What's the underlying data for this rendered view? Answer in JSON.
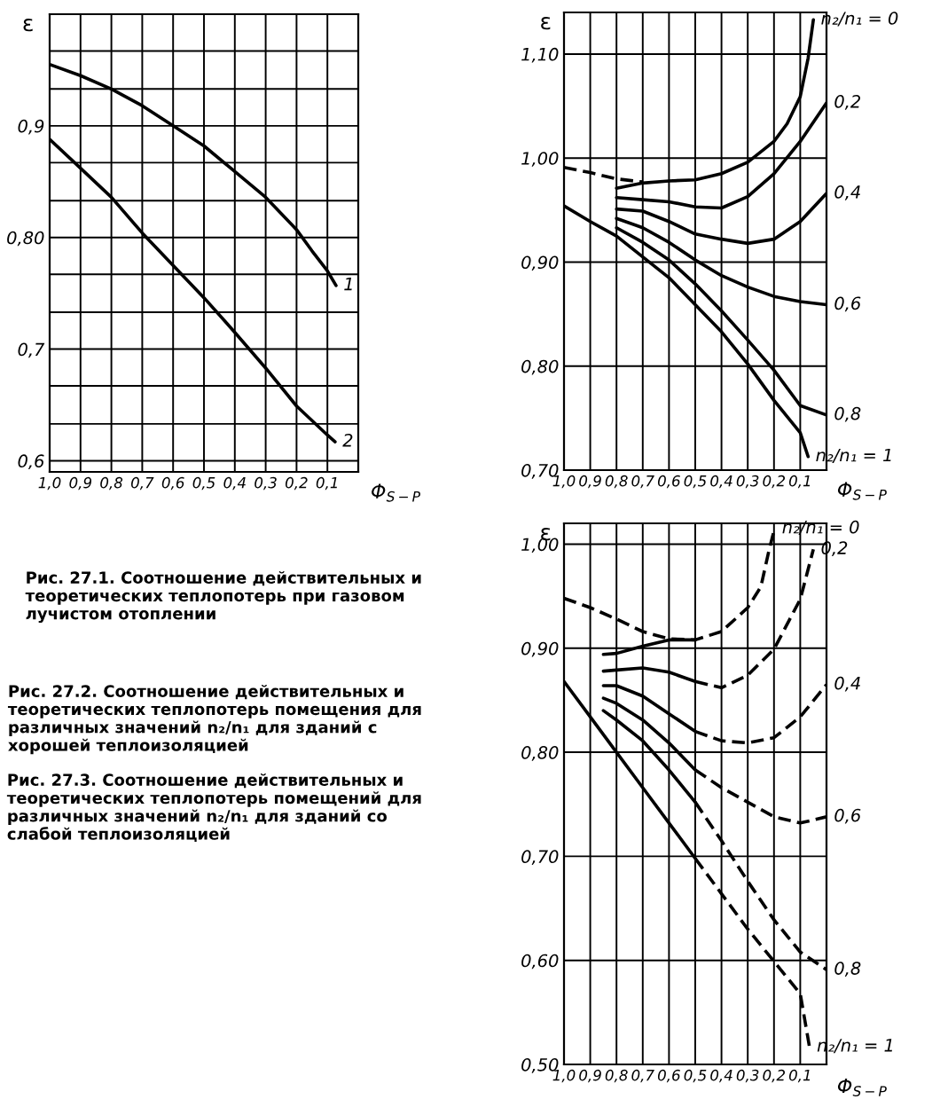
{
  "chart_data": [
    {
      "type": "line",
      "xlabel": "Φ$_{S−P}$",
      "ylabel": "ε",
      "xlim": [
        1.0,
        0.0
      ],
      "ylim": [
        0.59,
        1.0
      ],
      "xticks": [
        {
          "value": 1.0,
          "label": "1,0"
        },
        {
          "value": 0.9,
          "label": "0,9"
        },
        {
          "value": 0.8,
          "label": "0,8"
        },
        {
          "value": 0.7,
          "label": "0,7"
        },
        {
          "value": 0.6,
          "label": "0,6"
        },
        {
          "value": 0.5,
          "label": "0,5"
        },
        {
          "value": 0.4,
          "label": "0,4"
        },
        {
          "value": 0.3,
          "label": "0,3"
        },
        {
          "value": 0.2,
          "label": "0,2"
        },
        {
          "value": 0.1,
          "label": "0,1"
        }
      ],
      "yticks": [
        {
          "value": 0.6,
          "label": "0,6"
        },
        {
          "value": 0.633,
          "label": null
        },
        {
          "value": 0.667,
          "label": null
        },
        {
          "value": 0.7,
          "label": "0,7"
        },
        {
          "value": 0.733,
          "label": null
        },
        {
          "value": 0.767,
          "label": null
        },
        {
          "value": 0.8,
          "label": "0,80"
        },
        {
          "value": 0.833,
          "label": null
        },
        {
          "value": 0.867,
          "label": null
        },
        {
          "value": 0.9,
          "label": "0,9"
        },
        {
          "value": 0.933,
          "label": null
        },
        {
          "value": 0.967,
          "label": null
        }
      ],
      "grid": true,
      "series": [
        {
          "name": "1",
          "color": "#000000",
          "line_style": "solid",
          "x": [
            1.0,
            0.9,
            0.8,
            0.7,
            0.6,
            0.5,
            0.4,
            0.3,
            0.2,
            0.15,
            0.1,
            0.072
          ],
          "values": [
            0.955,
            0.945,
            0.933,
            0.918,
            0.9,
            0.882,
            0.859,
            0.836,
            0.807,
            0.788,
            0.77,
            0.757
          ]
        },
        {
          "name": "2",
          "color": "#000000",
          "line_style": "solid",
          "x": [
            1.0,
            0.9,
            0.8,
            0.7,
            0.6,
            0.5,
            0.4,
            0.3,
            0.2,
            0.1,
            0.075
          ],
          "values": [
            0.888,
            0.862,
            0.836,
            0.804,
            0.775,
            0.746,
            0.715,
            0.683,
            0.649,
            0.623,
            0.617
          ]
        }
      ],
      "annotations": [
        "Рис. 27.1. Соотношение действительных и теоретических теплопотерь при газовом лучистом отоплении"
      ]
    },
    {
      "type": "line",
      "xlabel": "Φ$_{S−P}$",
      "ylabel": "ε",
      "xlim": [
        1.0,
        0.0
      ],
      "ylim": [
        0.7,
        1.14
      ],
      "xticks": [
        {
          "value": 1.0,
          "label": "1,0"
        },
        {
          "value": 0.9,
          "label": "0,9"
        },
        {
          "value": 0.8,
          "label": "0,8"
        },
        {
          "value": 0.7,
          "label": "0,7"
        },
        {
          "value": 0.6,
          "label": "0,6"
        },
        {
          "value": 0.5,
          "label": "0,5"
        },
        {
          "value": 0.4,
          "label": "0,4"
        },
        {
          "value": 0.3,
          "label": "0,3"
        },
        {
          "value": 0.2,
          "label": "0,2"
        },
        {
          "value": 0.1,
          "label": "0,1"
        }
      ],
      "yticks": [
        {
          "value": 0.7,
          "label": "0,70"
        },
        {
          "value": 0.8,
          "label": "0,80"
        },
        {
          "value": 0.9,
          "label": "0,90"
        },
        {
          "value": 1.0,
          "label": "1,00"
        },
        {
          "value": 1.1,
          "label": "1,10"
        }
      ],
      "grid": true,
      "series": [
        {
          "color": "#000000",
          "line_style": "dashed",
          "x": [
            1.0,
            0.9,
            0.8,
            0.7
          ],
          "values": [
            0.991,
            0.986,
            0.98,
            0.977
          ]
        },
        {
          "name": "n₂/n₁ = 0",
          "color": "#000000",
          "line_style": "solid",
          "x": [
            0.8,
            0.7,
            0.6,
            0.5,
            0.4,
            0.3,
            0.2,
            0.15,
            0.1,
            0.07,
            0.05
          ],
          "values": [
            0.971,
            0.976,
            0.978,
            0.979,
            0.985,
            0.996,
            1.016,
            1.033,
            1.059,
            1.096,
            1.133
          ]
        },
        {
          "name": "0,2",
          "color": "#000000",
          "line_style": "solid",
          "x": [
            0.8,
            0.7,
            0.6,
            0.5,
            0.4,
            0.3,
            0.2,
            0.1,
            0.0
          ],
          "values": [
            0.962,
            0.96,
            0.958,
            0.953,
            0.952,
            0.963,
            0.985,
            1.016,
            1.053
          ]
        },
        {
          "name": "0,4",
          "color": "#000000",
          "line_style": "solid",
          "x": [
            0.8,
            0.7,
            0.6,
            0.5,
            0.4,
            0.3,
            0.2,
            0.1,
            0.0
          ],
          "values": [
            0.951,
            0.949,
            0.939,
            0.927,
            0.922,
            0.918,
            0.922,
            0.939,
            0.966
          ]
        },
        {
          "name": "0,6",
          "color": "#000000",
          "line_style": "solid",
          "x": [
            0.8,
            0.7,
            0.6,
            0.5,
            0.4,
            0.3,
            0.2,
            0.1,
            0.0
          ],
          "values": [
            0.942,
            0.933,
            0.919,
            0.902,
            0.887,
            0.876,
            0.867,
            0.862,
            0.859
          ]
        },
        {
          "name": "0,8",
          "color": "#000000",
          "line_style": "solid",
          "x": [
            0.8,
            0.7,
            0.6,
            0.5,
            0.4,
            0.3,
            0.2,
            0.1,
            0.0
          ],
          "values": [
            0.933,
            0.919,
            0.902,
            0.879,
            0.853,
            0.825,
            0.796,
            0.762,
            0.753
          ]
        },
        {
          "name": "n₂/n₁ = 1",
          "color": "#000000",
          "line_style": "solid",
          "x": [
            1.0,
            0.9,
            0.8,
            0.7,
            0.6,
            0.5,
            0.4,
            0.3,
            0.2,
            0.1,
            0.07
          ],
          "values": [
            0.954,
            0.939,
            0.925,
            0.905,
            0.885,
            0.859,
            0.833,
            0.802,
            0.767,
            0.736,
            0.713
          ]
        }
      ],
      "annotations": [
        "Рис. 27.2. Соотношение действительных и теоретических теплопотерь помещения для различных значений n₂/n₁ для зданий с хорошей теплоизоляцией"
      ]
    },
    {
      "type": "line",
      "xlabel": "Φ$_{S−P}$",
      "ylabel": "ε",
      "xlim": [
        1.0,
        0.0
      ],
      "ylim": [
        0.5,
        1.02
      ],
      "xticks": [
        {
          "value": 1.0,
          "label": "1,0"
        },
        {
          "value": 0.9,
          "label": "0,9"
        },
        {
          "value": 0.8,
          "label": "0,8"
        },
        {
          "value": 0.7,
          "label": "0,7"
        },
        {
          "value": 0.6,
          "label": "0,6"
        },
        {
          "value": 0.5,
          "label": "0,5"
        },
        {
          "value": 0.4,
          "label": "0,4"
        },
        {
          "value": 0.3,
          "label": "0,3"
        },
        {
          "value": 0.2,
          "label": "0,2"
        },
        {
          "value": 0.1,
          "label": "0,1"
        }
      ],
      "yticks": [
        {
          "value": 0.5,
          "label": "0,50"
        },
        {
          "value": 0.6,
          "label": "0,60"
        },
        {
          "value": 0.7,
          "label": "0,70"
        },
        {
          "value": 0.8,
          "label": "0,80"
        },
        {
          "value": 0.9,
          "label": "0,90"
        },
        {
          "value": 1.0,
          "label": "1,00"
        }
      ],
      "grid": true,
      "series": [
        {
          "name": "n₂/n₁ = 0",
          "color": "#000000",
          "line_style": "dashed",
          "x": [
            1.0,
            0.9,
            0.8,
            0.7,
            0.6,
            0.5,
            0.4,
            0.3,
            0.25,
            0.22,
            0.198
          ],
          "values": [
            0.948,
            0.939,
            0.928,
            0.916,
            0.909,
            0.908,
            0.916,
            0.939,
            0.959,
            0.993,
            1.015
          ]
        },
        {
          "color": "#000000",
          "line_style": "solid",
          "x": [
            0.85,
            0.8,
            0.7,
            0.6,
            0.5
          ],
          "values": [
            0.894,
            0.895,
            0.902,
            0.908,
            0.908
          ]
        },
        {
          "color": "#000000",
          "line_style": "solid",
          "x": [
            0.85,
            0.8,
            0.7,
            0.6,
            0.5
          ],
          "values": [
            0.878,
            0.879,
            0.881,
            0.877,
            0.868
          ]
        },
        {
          "name": "0,2",
          "color": "#000000",
          "line_style": "dashed",
          "x": [
            0.5,
            0.4,
            0.3,
            0.2,
            0.1,
            0.05
          ],
          "values": [
            0.868,
            0.862,
            0.874,
            0.899,
            0.947,
            0.995
          ]
        },
        {
          "color": "#000000",
          "line_style": "solid",
          "x": [
            0.85,
            0.8,
            0.7,
            0.6,
            0.5
          ],
          "values": [
            0.864,
            0.864,
            0.854,
            0.837,
            0.82
          ]
        },
        {
          "name": "0,4",
          "color": "#000000",
          "line_style": "dashed",
          "x": [
            0.5,
            0.4,
            0.3,
            0.2,
            0.1,
            0.0
          ],
          "values": [
            0.82,
            0.811,
            0.809,
            0.814,
            0.834,
            0.865
          ]
        },
        {
          "color": "#000000",
          "line_style": "solid",
          "x": [
            0.85,
            0.8,
            0.7,
            0.6,
            0.5
          ],
          "values": [
            0.852,
            0.847,
            0.831,
            0.809,
            0.783
          ]
        },
        {
          "name": "0,6",
          "color": "#000000",
          "line_style": "dashed",
          "x": [
            0.5,
            0.4,
            0.3,
            0.2,
            0.1,
            0.0
          ],
          "values": [
            0.783,
            0.766,
            0.752,
            0.738,
            0.732,
            0.738
          ]
        },
        {
          "color": "#000000",
          "line_style": "solid",
          "x": [
            0.85,
            0.8,
            0.7,
            0.6,
            0.5
          ],
          "values": [
            0.84,
            0.831,
            0.811,
            0.783,
            0.752
          ]
        },
        {
          "name": "0,8",
          "color": "#000000",
          "line_style": "dashed",
          "x": [
            0.5,
            0.4,
            0.3,
            0.2,
            0.1,
            0.0
          ],
          "values": [
            0.752,
            0.715,
            0.676,
            0.639,
            0.608,
            0.591
          ]
        },
        {
          "color": "#000000",
          "line_style": "solid",
          "x": [
            1.0,
            0.9,
            0.8,
            0.7,
            0.6,
            0.5
          ],
          "values": [
            0.868,
            0.834,
            0.8,
            0.766,
            0.732,
            0.698
          ]
        },
        {
          "name": "n₂/n₁ = 1",
          "color": "#000000",
          "line_style": "dashed",
          "x": [
            0.5,
            0.4,
            0.3,
            0.2,
            0.1,
            0.065
          ],
          "values": [
            0.698,
            0.664,
            0.63,
            0.599,
            0.568,
            0.517
          ]
        }
      ],
      "annotations": [
        "Рис. 27.3. Соотношение действительных и теоретических теплопотерь помещений для различных значений n₂/n₁ для зданий со слабой теплоизоляцией"
      ]
    }
  ]
}
